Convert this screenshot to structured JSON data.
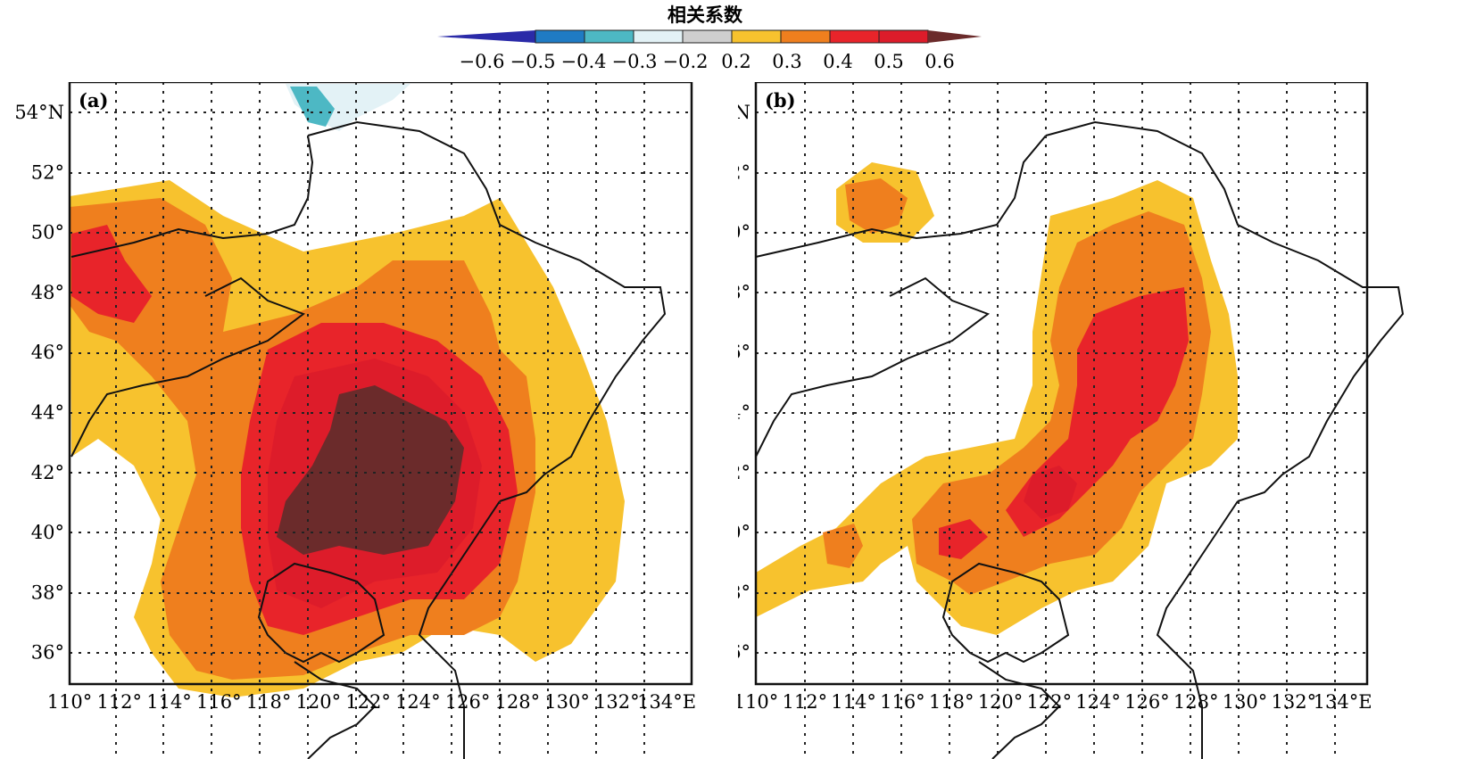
{
  "colorbar": {
    "title": "相关系数",
    "tick_labels": [
      "−0.6",
      "−0.5",
      "−0.4",
      "−0.3",
      "−0.2",
      "0.2",
      "0.3",
      "0.4",
      "0.5",
      "0.6"
    ],
    "colors": [
      "#2a2aa8",
      "#1f7bc4",
      "#4db8c4",
      "#e3f2f6",
      "#cfcfcf",
      "#f7c22e",
      "#ef7f1e",
      "#e8242a",
      "#dd1c2a",
      "#6b2b2b"
    ]
  },
  "panels": [
    {
      "id": "a",
      "label": "(a)"
    },
    {
      "id": "b",
      "label": "(b)"
    }
  ],
  "axes": {
    "lat_labels": [
      "54°N",
      "52°",
      "50°",
      "48°",
      "46°",
      "44°",
      "42°",
      "40°",
      "38°",
      "36°"
    ],
    "lon_labels": [
      "110°",
      "112°",
      "114°",
      "116°",
      "118°",
      "120°",
      "122°",
      "124°",
      "126°",
      "128°",
      "130°",
      "132°",
      "134°E"
    ],
    "lon_range": [
      110,
      135
    ],
    "lat_range": [
      35,
      55
    ]
  }
}
